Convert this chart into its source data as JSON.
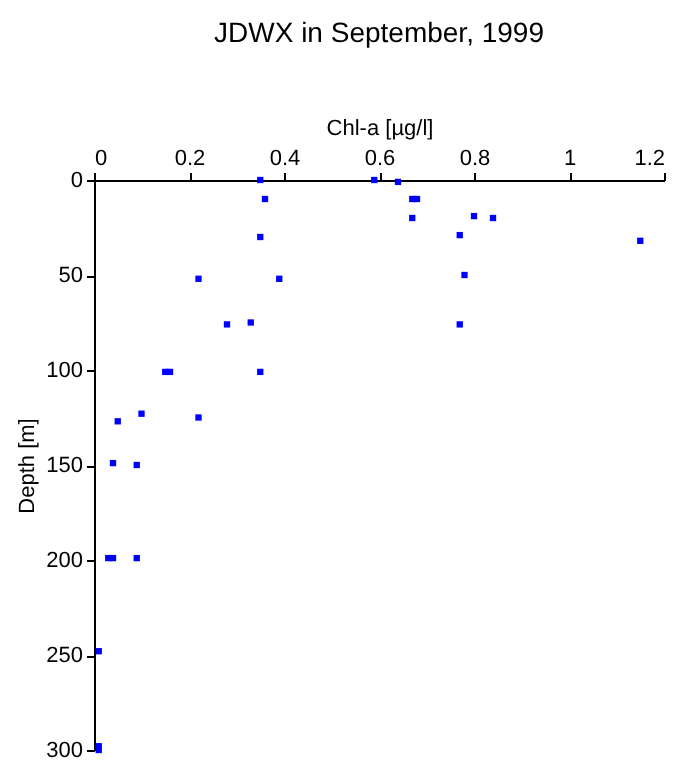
{
  "chart_data": {
    "type": "scatter",
    "title": "JDWX in September, 1999",
    "xlabel": "Chl-a [µg/l]",
    "ylabel": "Depth [m]",
    "x": [
      0.35,
      0.36,
      0.35,
      0.22,
      0.39,
      0.28,
      0.33,
      0.59,
      0.64,
      0.67,
      0.68,
      0.67,
      0.8,
      0.84,
      0.77,
      1.15,
      0.78,
      0.77,
      0.15,
      0.16,
      0.35,
      0.05,
      0.1,
      0.22,
      0.04,
      0.09,
      0.03,
      0.04,
      0.09,
      0.01,
      0.01,
      0.01
    ],
    "series": [
      {
        "color": "#0000ff",
        "values": [
          0,
          10,
          30,
          52,
          52,
          76,
          75,
          0,
          1,
          10,
          10,
          20,
          19,
          20,
          29,
          32,
          50,
          76,
          101,
          101,
          101,
          127,
          123,
          125,
          149,
          150,
          199,
          199,
          199,
          248,
          298,
          300
        ]
      }
    ],
    "xlim": [
      0,
      1.2
    ],
    "xticks": [
      0,
      0.2,
      0.4,
      0.6,
      0.8,
      1,
      1.2
    ],
    "ylim": [
      300,
      0
    ],
    "yticks": [
      0,
      50,
      100,
      150,
      200,
      250,
      300
    ],
    "grid": false,
    "marker": "square"
  }
}
